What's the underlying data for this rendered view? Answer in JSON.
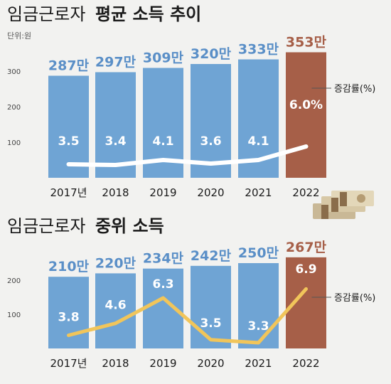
{
  "chart_data": [
    {
      "type": "bar",
      "title_plain": "임금근로자",
      "title_bold": "평균 소득 추이",
      "unit_label": "단위:원",
      "categories": [
        "2017년",
        "2018",
        "2019",
        "2020",
        "2021",
        "2022"
      ],
      "values": [
        287,
        297,
        309,
        320,
        333,
        353
      ],
      "value_labels": [
        "287만",
        "297만",
        "309만",
        "320만",
        "333만",
        "353만"
      ],
      "yticks": [
        100,
        200,
        300
      ],
      "ylim": [
        0,
        360
      ],
      "growth_line": {
        "name": "증감률(%)",
        "values": [
          3.5,
          3.4,
          4.1,
          3.6,
          4.1,
          6.0
        ],
        "labels": [
          "3.5",
          "3.4",
          "4.1",
          "3.6",
          "4.1",
          "6.0%"
        ]
      },
      "colors": {
        "bar": "#6fa4d4",
        "highlight_bar": "#a65f48",
        "line": "#ffffff",
        "value_label": "#5a8fc7",
        "highlight_label": "#a65f48"
      }
    },
    {
      "type": "bar",
      "title_plain": "임금근로자",
      "title_bold": "중위 소득",
      "categories": [
        "2017년",
        "2018",
        "2019",
        "2020",
        "2021",
        "2022"
      ],
      "values": [
        210,
        220,
        234,
        242,
        250,
        267
      ],
      "value_labels": [
        "210만",
        "220만",
        "234만",
        "242만",
        "250만",
        "267만"
      ],
      "yticks": [
        100,
        200
      ],
      "ylim": [
        0,
        270
      ],
      "growth_line": {
        "name": "증감률(%)",
        "values": [
          3.8,
          4.6,
          6.3,
          3.5,
          3.3,
          6.9
        ],
        "labels": [
          "3.8",
          "4.6",
          "6.3",
          "3.5",
          "3.3",
          "6.9"
        ]
      },
      "colors": {
        "bar": "#6fa4d4",
        "highlight_bar": "#a65f48",
        "line": "#f1c55a",
        "value_label": "#5a8fc7",
        "highlight_label": "#a65f48"
      }
    }
  ]
}
